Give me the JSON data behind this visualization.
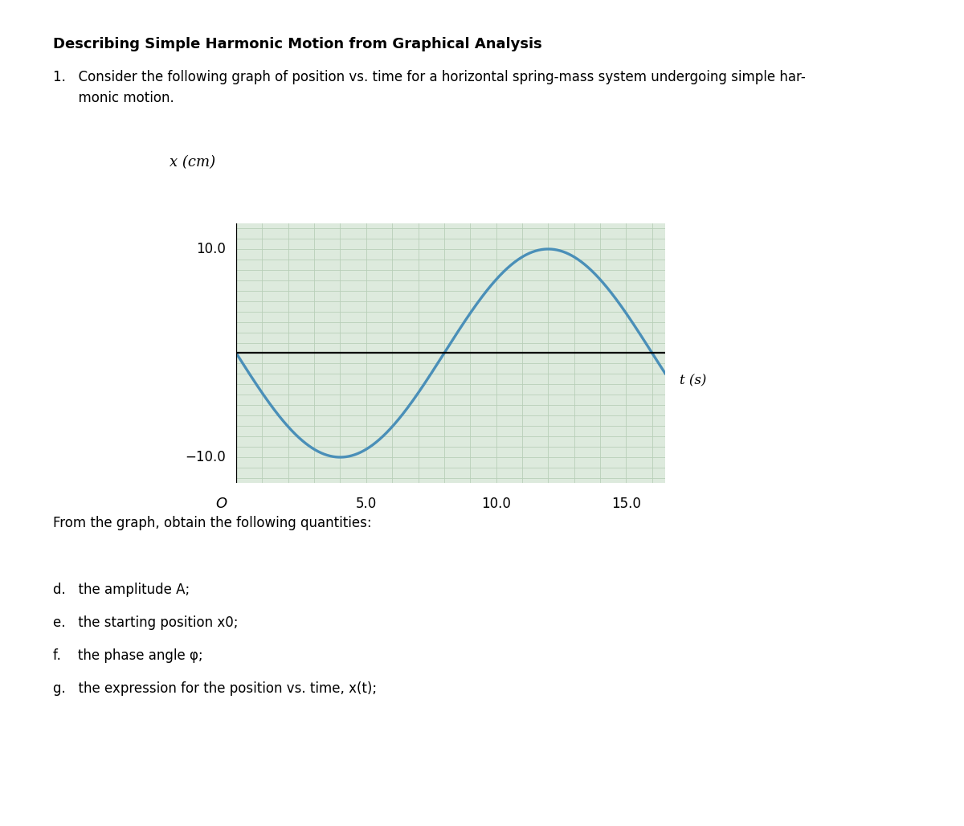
{
  "title": "Describing Simple Harmonic Motion from Graphical Analysis",
  "line1": "1.   Consider the following graph of position vs. time for a horizontal spring-mass system undergoing simple har-",
  "line2": "      monic motion.",
  "graph_ylabel": "x (cm)",
  "graph_xlabel": "t (s)",
  "xlim": [
    0,
    16.5
  ],
  "ylim": [
    -12.5,
    12.5
  ],
  "amplitude": 10.0,
  "period": 16.0,
  "curve_color": "#4a8fb8",
  "curve_linewidth": 2.4,
  "grid_color": "#b8cfb8",
  "grid_linewidth": 0.6,
  "bg_color": "#ddeadd",
  "axis_linewidth": 1.6,
  "below_text": "From the graph, obtain the following quantities:",
  "item_d": "d.   the amplitude ",
  "item_d_italic": "A",
  "item_d_end": ";",
  "item_e": "e.   the starting position ",
  "item_e_italic": "x",
  "item_e_sub": "0",
  "item_e_end": ";",
  "item_f": "f.    the phase angle ",
  "item_f_italic": "φ",
  "item_f_end": ";",
  "item_g": "g.   the expression for the position vs. time, ",
  "item_g_italic": "x(t)",
  "item_g_end": ";",
  "fig_bg": "#ffffff",
  "title_fontsize": 13,
  "body_fontsize": 12,
  "tick_fontsize": 12,
  "ylabel_fontsize": 13,
  "xlabel_fontsize": 12
}
